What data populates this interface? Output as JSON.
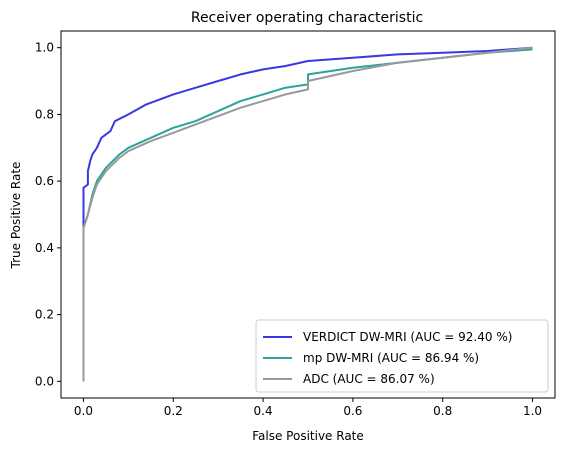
{
  "chart_data": {
    "type": "line",
    "title": "Receiver operating characteristic",
    "xlabel": "False Positive Rate",
    "ylabel": "True Positive Rate",
    "xlim": [
      -0.05,
      1.05
    ],
    "ylim": [
      -0.05,
      1.05
    ],
    "x_ticks": [
      "0.0",
      "0.2",
      "0.4",
      "0.6",
      "0.8",
      "1.0"
    ],
    "y_ticks": [
      "0.0",
      "0.2",
      "0.4",
      "0.6",
      "0.8",
      "1.0"
    ],
    "grid": false,
    "legend_position": "lower-right",
    "series": [
      {
        "name": "VERDICT DW-MRI (AUC = 92.40 %)",
        "color": "#3a37e5",
        "points": [
          [
            0.0,
            0.0
          ],
          [
            0.0,
            0.47
          ],
          [
            0.0,
            0.58
          ],
          [
            0.01,
            0.59
          ],
          [
            0.01,
            0.63
          ],
          [
            0.015,
            0.66
          ],
          [
            0.02,
            0.68
          ],
          [
            0.03,
            0.7
          ],
          [
            0.04,
            0.73
          ],
          [
            0.06,
            0.75
          ],
          [
            0.07,
            0.78
          ],
          [
            0.1,
            0.8
          ],
          [
            0.14,
            0.83
          ],
          [
            0.2,
            0.86
          ],
          [
            0.25,
            0.88
          ],
          [
            0.3,
            0.9
          ],
          [
            0.35,
            0.92
          ],
          [
            0.4,
            0.935
          ],
          [
            0.45,
            0.945
          ],
          [
            0.5,
            0.96
          ],
          [
            0.6,
            0.97
          ],
          [
            0.7,
            0.98
          ],
          [
            0.8,
            0.985
          ],
          [
            0.9,
            0.99
          ],
          [
            1.0,
            1.0
          ]
        ]
      },
      {
        "name": "mp DW-MRI (AUC = 86.94 %)",
        "color": "#2ca39d",
        "points": [
          [
            0.0,
            0.0
          ],
          [
            0.0,
            0.46
          ],
          [
            0.01,
            0.5
          ],
          [
            0.02,
            0.56
          ],
          [
            0.03,
            0.6
          ],
          [
            0.05,
            0.64
          ],
          [
            0.08,
            0.68
          ],
          [
            0.1,
            0.7
          ],
          [
            0.15,
            0.73
          ],
          [
            0.2,
            0.76
          ],
          [
            0.25,
            0.78
          ],
          [
            0.3,
            0.81
          ],
          [
            0.35,
            0.84
          ],
          [
            0.4,
            0.86
          ],
          [
            0.45,
            0.88
          ],
          [
            0.5,
            0.89
          ],
          [
            0.5,
            0.92
          ],
          [
            0.6,
            0.94
          ],
          [
            0.7,
            0.955
          ],
          [
            0.8,
            0.97
          ],
          [
            0.9,
            0.985
          ],
          [
            1.0,
            0.995
          ]
        ]
      },
      {
        "name": "ADC (AUC = 86.07 %)",
        "color": "#999999",
        "points": [
          [
            0.0,
            0.0
          ],
          [
            0.0,
            0.46
          ],
          [
            0.01,
            0.5
          ],
          [
            0.02,
            0.55
          ],
          [
            0.03,
            0.59
          ],
          [
            0.05,
            0.63
          ],
          [
            0.08,
            0.67
          ],
          [
            0.1,
            0.69
          ],
          [
            0.15,
            0.72
          ],
          [
            0.2,
            0.745
          ],
          [
            0.25,
            0.77
          ],
          [
            0.3,
            0.795
          ],
          [
            0.35,
            0.82
          ],
          [
            0.4,
            0.84
          ],
          [
            0.45,
            0.86
          ],
          [
            0.5,
            0.875
          ],
          [
            0.5,
            0.9
          ],
          [
            0.6,
            0.93
          ],
          [
            0.7,
            0.955
          ],
          [
            0.8,
            0.97
          ],
          [
            0.9,
            0.985
          ],
          [
            1.0,
            1.0
          ]
        ]
      }
    ]
  }
}
